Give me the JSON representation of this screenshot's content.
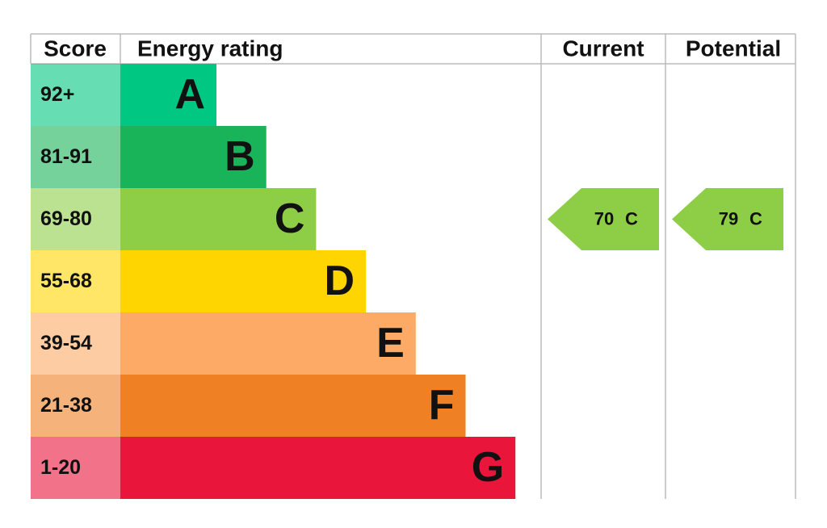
{
  "header": {
    "score": "Score",
    "rating": "Energy rating",
    "current": "Current",
    "potential": "Potential"
  },
  "bands": [
    {
      "score": "92+",
      "letter": "A",
      "color": "#00c781"
    },
    {
      "score": "81-91",
      "letter": "B",
      "color": "#19b459"
    },
    {
      "score": "69-80",
      "letter": "C",
      "color": "#8dce46"
    },
    {
      "score": "55-68",
      "letter": "D",
      "color": "#ffd500"
    },
    {
      "score": "39-54",
      "letter": "E",
      "color": "#fcaa65"
    },
    {
      "score": "21-38",
      "letter": "F",
      "color": "#ef8023"
    },
    {
      "score": "1-20",
      "letter": "G",
      "color": "#e9153b"
    }
  ],
  "current": {
    "value": 70,
    "rating": "C"
  },
  "potential": {
    "value": 79,
    "rating": "C"
  }
}
